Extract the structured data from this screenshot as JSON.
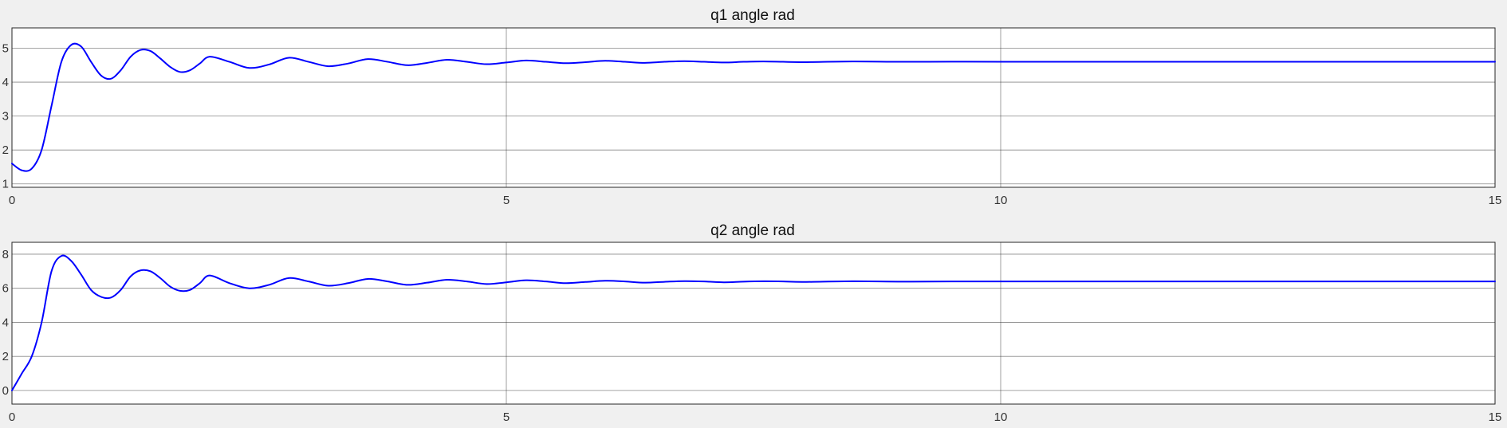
{
  "colors": {
    "line": "#0000ff",
    "background": "#f0f0f0",
    "axes": "#ffffff"
  },
  "chart_data": [
    {
      "type": "line",
      "title": "q1 angle rad",
      "xlabel": "",
      "ylabel": "",
      "xlim": [
        0,
        15
      ],
      "ylim": [
        0.9,
        5.6
      ],
      "xticks": [
        0,
        5,
        10,
        15
      ],
      "yticks": [
        1,
        2,
        3,
        4,
        5
      ],
      "grid": true,
      "series": [
        {
          "x": [
            0,
            0.1,
            0.2,
            0.3,
            0.4,
            0.5,
            0.6,
            0.7,
            0.8,
            0.9,
            1.0,
            1.1,
            1.2,
            1.3,
            1.4,
            1.5,
            1.6,
            1.7,
            1.8,
            1.9,
            2.0,
            2.2,
            2.4,
            2.6,
            2.8,
            3.0,
            3.2,
            3.4,
            3.6,
            3.8,
            4.0,
            4.2,
            4.4,
            4.6,
            4.8,
            5.0,
            5.2,
            5.4,
            5.6,
            5.8,
            6.0,
            6.2,
            6.4,
            6.6,
            6.8,
            7.0,
            7.2,
            7.4,
            7.6,
            7.8,
            8.0,
            8.5,
            9.0,
            9.5,
            10.0,
            11.0,
            12.0,
            13.0,
            14.0,
            15.0
          ],
          "y": [
            1.6,
            1.4,
            1.45,
            2.0,
            3.3,
            4.6,
            5.1,
            5.05,
            4.6,
            4.2,
            4.1,
            4.35,
            4.75,
            4.95,
            4.92,
            4.7,
            4.45,
            4.3,
            4.35,
            4.55,
            4.75,
            4.6,
            4.42,
            4.52,
            4.72,
            4.6,
            4.47,
            4.55,
            4.68,
            4.6,
            4.5,
            4.57,
            4.66,
            4.6,
            4.53,
            4.58,
            4.64,
            4.6,
            4.56,
            4.59,
            4.63,
            4.6,
            4.57,
            4.6,
            4.62,
            4.6,
            4.58,
            4.6,
            4.61,
            4.6,
            4.59,
            4.61,
            4.6,
            4.605,
            4.6,
            4.6,
            4.6,
            4.6,
            4.6,
            4.6
          ]
        }
      ]
    },
    {
      "type": "line",
      "title": "q2 angle rad",
      "xlabel": "",
      "ylabel": "",
      "xlim": [
        0,
        15
      ],
      "ylim": [
        -0.8,
        8.7
      ],
      "xticks": [
        0,
        5,
        10,
        15
      ],
      "yticks": [
        0,
        2,
        4,
        6,
        8
      ],
      "grid": true,
      "series": [
        {
          "x": [
            0,
            0.1,
            0.2,
            0.3,
            0.4,
            0.5,
            0.6,
            0.7,
            0.8,
            0.9,
            1.0,
            1.1,
            1.2,
            1.3,
            1.4,
            1.5,
            1.6,
            1.7,
            1.8,
            1.9,
            2.0,
            2.2,
            2.4,
            2.6,
            2.8,
            3.0,
            3.2,
            3.4,
            3.6,
            3.8,
            4.0,
            4.2,
            4.4,
            4.6,
            4.8,
            5.0,
            5.2,
            5.4,
            5.6,
            5.8,
            6.0,
            6.2,
            6.4,
            6.6,
            6.8,
            7.0,
            7.2,
            7.4,
            7.6,
            7.8,
            8.0,
            8.5,
            9.0,
            9.5,
            10.0,
            11.0,
            12.0,
            13.0,
            14.0,
            15.0
          ],
          "y": [
            0.0,
            1.0,
            2.0,
            4.0,
            7.0,
            7.9,
            7.6,
            6.8,
            5.9,
            5.5,
            5.45,
            5.9,
            6.7,
            7.05,
            7.0,
            6.6,
            6.1,
            5.85,
            5.9,
            6.3,
            6.75,
            6.3,
            6.0,
            6.2,
            6.6,
            6.4,
            6.15,
            6.3,
            6.55,
            6.4,
            6.2,
            6.33,
            6.5,
            6.4,
            6.25,
            6.35,
            6.47,
            6.4,
            6.3,
            6.37,
            6.44,
            6.4,
            6.33,
            6.38,
            6.42,
            6.4,
            6.35,
            6.39,
            6.41,
            6.4,
            6.37,
            6.41,
            6.39,
            6.4,
            6.4,
            6.4,
            6.4,
            6.4,
            6.4,
            6.4
          ]
        }
      ]
    }
  ]
}
